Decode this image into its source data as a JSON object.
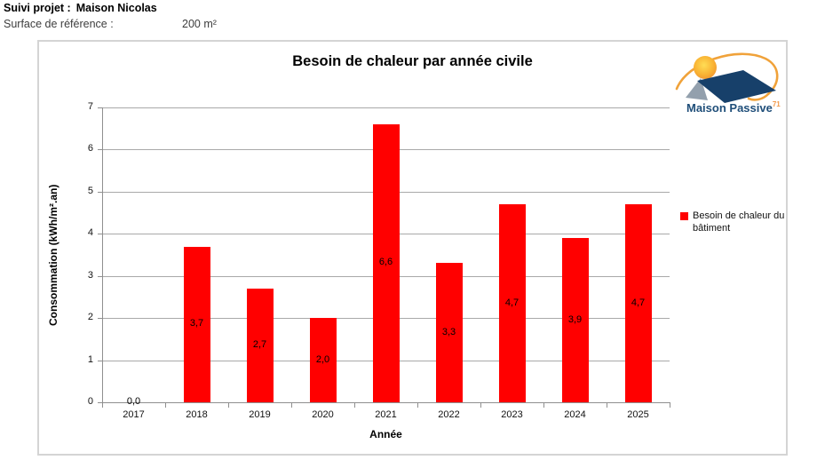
{
  "header": {
    "project_label": "Suivi projet :",
    "project_name": "Maison Nicolas",
    "surface_label": "Surface de référence :",
    "surface_value": "200  m²"
  },
  "logo": {
    "brand": "Maison Passive",
    "region": "71",
    "brand_color": "#1f4e79",
    "region_color": "#f2994a",
    "roof_color": "#17406a",
    "sun_color": "#f9b233",
    "swoosh_color": "#f0a23a"
  },
  "chart_data": {
    "type": "bar",
    "title": "Besoin de chaleur par année civile",
    "categories": [
      "2017",
      "2018",
      "2019",
      "2020",
      "2021",
      "2022",
      "2023",
      "2024",
      "2025"
    ],
    "values": [
      0.0,
      3.7,
      2.7,
      2.0,
      6.6,
      3.3,
      4.7,
      3.9,
      4.7
    ],
    "value_labels": [
      "0,0",
      "3,7",
      "2,7",
      "2,0",
      "6,6",
      "3,3",
      "4,7",
      "3,9",
      "4,7"
    ],
    "series": [
      {
        "name": "Besoin de chaleur du bâtiment",
        "color": "#ff0000"
      }
    ],
    "xlabel": "Année",
    "ylabel": "Consommation (kWh/m².an)",
    "ylim": [
      0,
      7
    ],
    "ytick_interval": 1,
    "grid": true,
    "gridline_color": "#a9a9a9",
    "legend_position": "right"
  }
}
